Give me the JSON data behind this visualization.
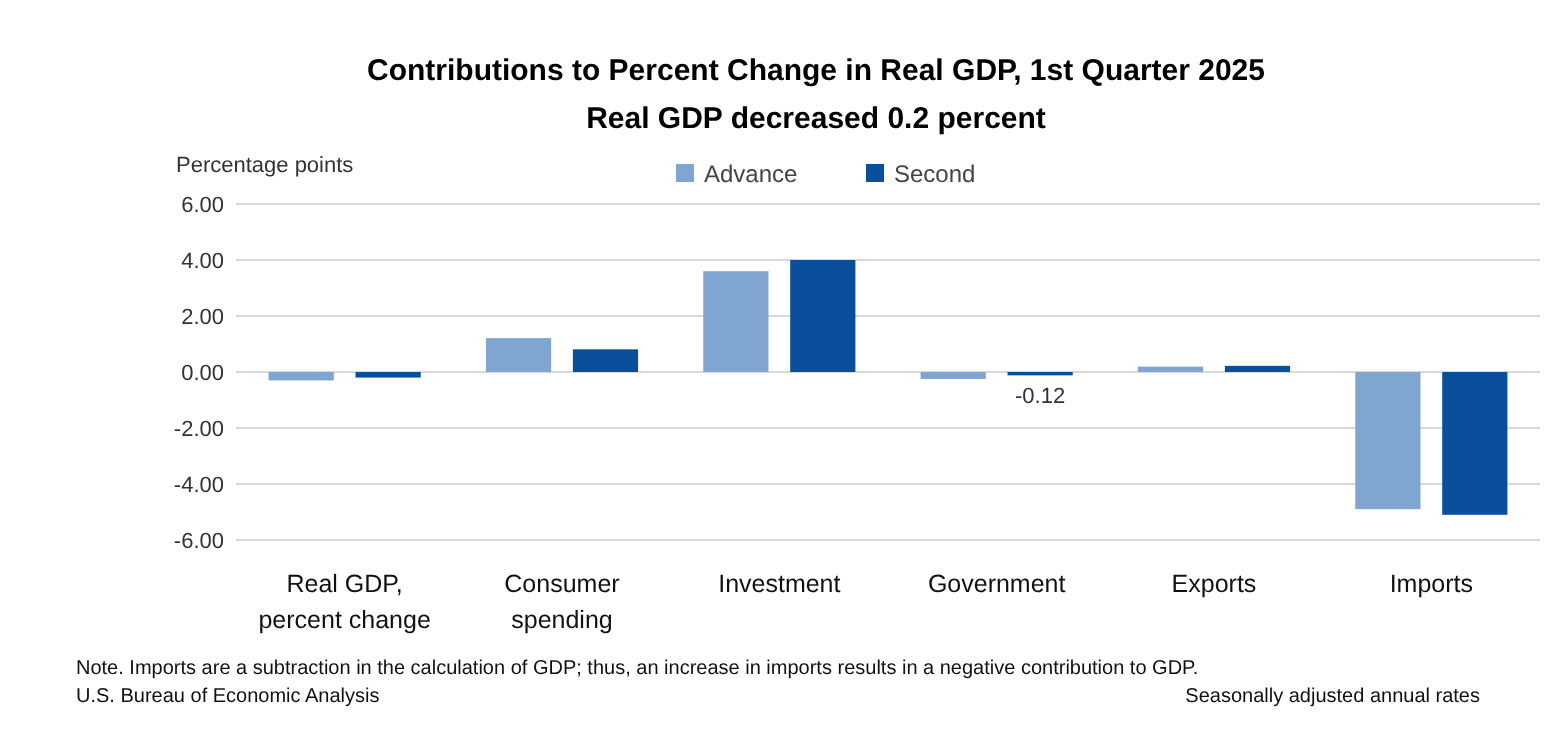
{
  "chart_data": {
    "type": "bar",
    "title": "Contributions to Percent Change in Real GDP, 1st Quarter 2025",
    "subtitle": "Real GDP decreased 0.2 percent",
    "ylabel": "Percentage points",
    "categories": [
      "Real GDP, percent change",
      "Consumer spending",
      "Investment",
      "Government",
      "Exports",
      "Imports"
    ],
    "series": [
      {
        "name": "Advance",
        "color": "#7ea6d0",
        "values": [
          -0.3,
          1.21,
          3.6,
          -0.25,
          0.19,
          -4.9
        ]
      },
      {
        "name": "Second",
        "color": "#0a4f9c",
        "values": [
          -0.2,
          0.81,
          4.0,
          -0.12,
          0.22,
          -5.1
        ],
        "value_labels": [
          null,
          null,
          null,
          "-0.12",
          null,
          null
        ]
      }
    ],
    "ylim": [
      -6,
      6
    ],
    "yticks": [
      {
        "value": -6,
        "label": "-6.00"
      },
      {
        "value": -4,
        "label": "-4.00"
      },
      {
        "value": -2,
        "label": "-2.00"
      },
      {
        "value": 0,
        "label": "0.00"
      },
      {
        "value": 2,
        "label": "2.00"
      },
      {
        "value": 4,
        "label": "4.00"
      },
      {
        "value": 6,
        "label": "6.00"
      }
    ],
    "grid": "y",
    "legend": "top",
    "annotations": [
      "Note. Imports are a subtraction in the calculation of GDP; thus, an increase in imports results in a negative contribution to GDP.",
      "U.S. Bureau of Economic Analysis",
      "Seasonally adjusted annual rates"
    ]
  }
}
